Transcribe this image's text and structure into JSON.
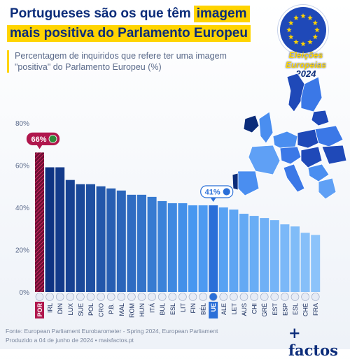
{
  "title": {
    "line1_prefix": "Portugueses são os que têm",
    "line1_highlight": "imagem",
    "line2": "mais positiva do Parlamento Europeu"
  },
  "subtitle": "Percentagem de inquiridos que refere ter uma imagem \"positiva\" do Parlamento Europeu (%)",
  "badge": {
    "line1": "Eleições Europeias",
    "line2": "2024"
  },
  "footer": {
    "source": "Fonte: European Parliament Eurobarometer - Spring 2024, European Parliament",
    "produced": "Produzido a 04 de junho de 2024 • maisfactos.pt"
  },
  "brand": "+ factos",
  "colors": {
    "navy": "#0b2c7a",
    "highlight": "#ffd400",
    "portugal": "#b0174d",
    "eu": "#2a6fd8"
  },
  "chart_data": {
    "type": "bar",
    "categories": [
      "POR",
      "IRL",
      "DIN",
      "LUX",
      "SUE",
      "POL",
      "CRO",
      "P.B.",
      "MAL",
      "ROM",
      "HUN",
      "ITÁ",
      "BUL",
      "ESL",
      "LIT",
      "FIN",
      "BÉL",
      "UE",
      "ALE",
      "LET",
      "AUS",
      "CHI",
      "GRÉ",
      "EST",
      "ESP",
      "ESL",
      "CHÉ",
      "FRA"
    ],
    "values": [
      66,
      59,
      59,
      53,
      51,
      51,
      50,
      49,
      48,
      46,
      46,
      45,
      43,
      42,
      42,
      41,
      41,
      41,
      40,
      39,
      37,
      36,
      35,
      34,
      32,
      31,
      28,
      27
    ],
    "ylim": [
      0,
      80
    ],
    "yticks": [
      0,
      20,
      40,
      60,
      80
    ],
    "ytick_labels": [
      "0%",
      "20%",
      "40%",
      "60%",
      "80%"
    ],
    "callouts": [
      {
        "category": "POR",
        "label": "66%"
      },
      {
        "category": "UE",
        "label": "41%"
      }
    ],
    "grid": false
  }
}
